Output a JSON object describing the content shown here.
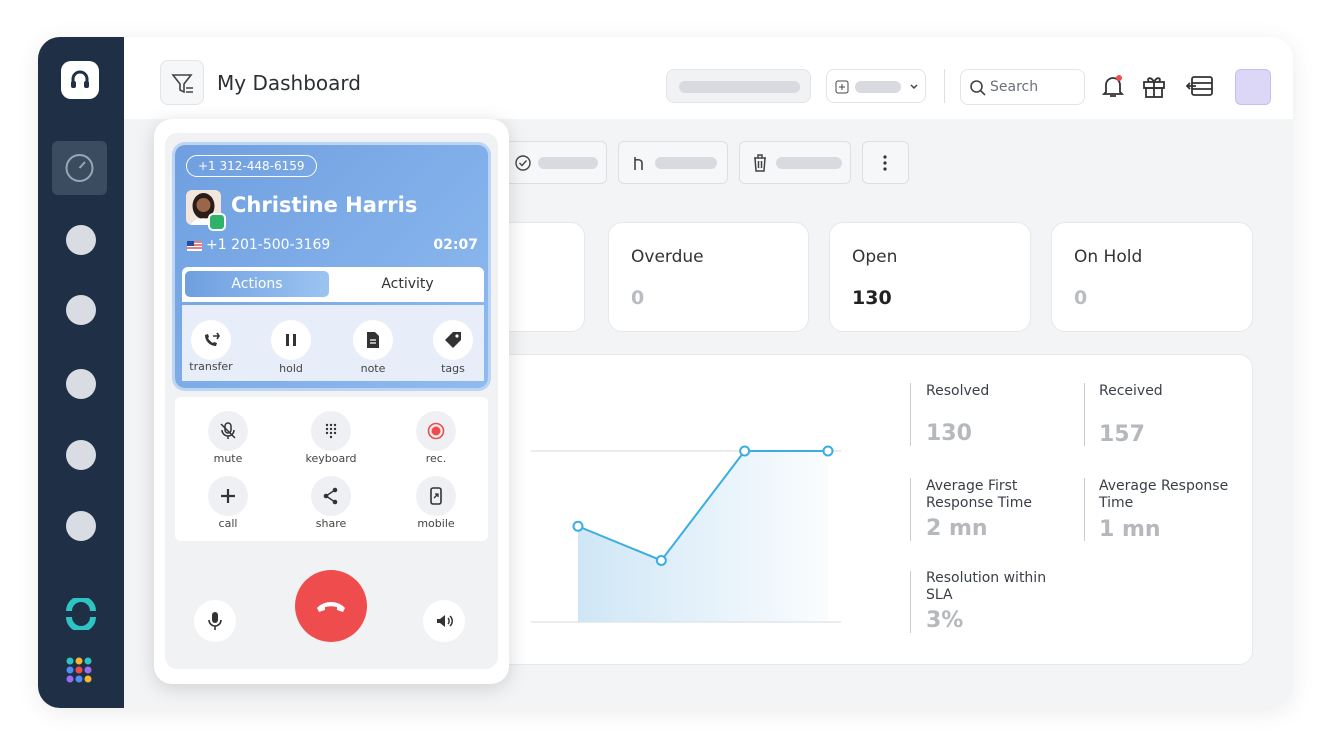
{
  "header": {
    "title": "My Dashboard",
    "search": "Search"
  },
  "call": {
    "caller_id": "+1 312-448-6159",
    "name": "Christine Harris",
    "number": "+1 201-500-3169",
    "duration": "02:07",
    "tabs": [
      "Actions",
      "Activity"
    ],
    "actions": [
      "transfer",
      "hold",
      "note",
      "tags"
    ],
    "controls": [
      "mute",
      "keyboard",
      "rec.",
      "call",
      "share",
      "mobile"
    ]
  },
  "stats": [
    {
      "label": "Overdue",
      "value": 0
    },
    {
      "label": "Open",
      "value": 130
    },
    {
      "label": "On Hold",
      "value": 0
    }
  ],
  "metrics": [
    {
      "label": "Resolved",
      "value": 130
    },
    {
      "label": "Received",
      "value": 157
    },
    {
      "label": "Average First Response Time",
      "value": "2 mn"
    },
    {
      "label": "Average Response Time",
      "value": "1 mn"
    },
    {
      "label": "Resolution within SLA",
      "value": "3%"
    }
  ],
  "trend": {
    "type": "line",
    "categories": [
      null,
      null,
      null,
      null
    ],
    "values": [
      56,
      36,
      100,
      100
    ],
    "ylim": [
      0,
      100
    ],
    "yticks": [
      0,
      100
    ]
  }
}
